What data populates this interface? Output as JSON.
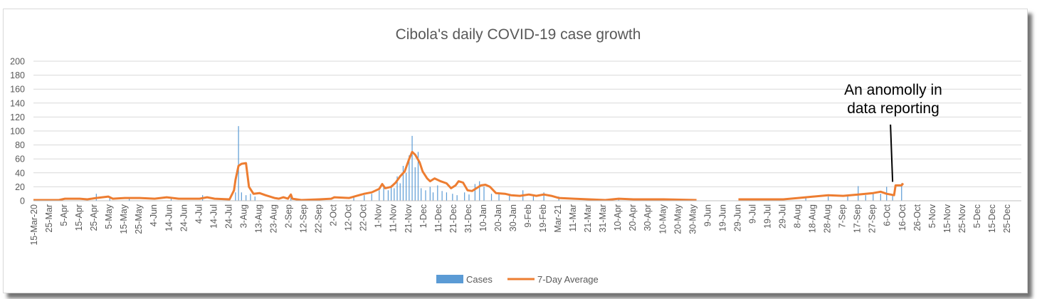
{
  "chart_data": {
    "type": "bar",
    "title": "Cibola's daily COVID-19 case growth",
    "xlabel": "",
    "ylabel": "",
    "ylim": [
      0,
      200
    ],
    "yticks": [
      0,
      20,
      40,
      60,
      80,
      100,
      120,
      140,
      160,
      180,
      200
    ],
    "grid": true,
    "legend_position": "bottom",
    "colors": {
      "cases": "#5b9bd5",
      "average": "#ed7d31"
    },
    "x_start": "2020-03-15",
    "x_days": 660,
    "x_tick_labels": [
      "15-Mar-20",
      "25-Mar",
      "5-Apr",
      "15-Apr",
      "25-Apr",
      "5-May",
      "15-May",
      "25-May",
      "4-Jun",
      "14-Jun",
      "24-Jun",
      "4-Jul",
      "14-Jul",
      "24-Jul",
      "3-Aug",
      "13-Aug",
      "23-Aug",
      "2-Sep",
      "12-Sep",
      "22-Sep",
      "2-Oct",
      "12-Oct",
      "22-Oct",
      "1-Nov",
      "11-Nov",
      "21-Nov",
      "1-Dec",
      "11-Dec",
      "21-Dec",
      "31-Dec",
      "10-Jan",
      "20-Jan",
      "30-Jan",
      "9-Feb",
      "19-Feb",
      "Mar-21",
      "11-Mar",
      "21-Mar",
      "31-Mar",
      "10-Apr",
      "20-Apr",
      "30-Apr",
      "10-May",
      "20-May",
      "30-May",
      "9-Jun",
      "19-Jun",
      "29-Jun",
      "9-Jul",
      "19-Jul",
      "29-Jul",
      "8-Aug",
      "18-Aug",
      "28-Aug",
      "7-Sep",
      "17-Sep",
      "27-Sep",
      "6-Oct",
      "16-Oct",
      "26-Oct",
      "5-Nov",
      "15-Nov",
      "25-Nov",
      "5-Dec",
      "15-Dec",
      "25-Dec"
    ],
    "series": [
      {
        "name": "Cases",
        "kind": "bar",
        "points": [
          {
            "date": "2020-04-26",
            "value": 10
          },
          {
            "date": "2020-05-05",
            "value": 5
          },
          {
            "date": "2020-05-18",
            "value": 4
          },
          {
            "date": "2020-06-15",
            "value": 4
          },
          {
            "date": "2020-07-06",
            "value": 8
          },
          {
            "date": "2020-07-28",
            "value": 12
          },
          {
            "date": "2020-07-30",
            "value": 107
          },
          {
            "date": "2020-08-01",
            "value": 12
          },
          {
            "date": "2020-08-04",
            "value": 8
          },
          {
            "date": "2020-08-07",
            "value": 10
          },
          {
            "date": "2020-08-10",
            "value": 6
          },
          {
            "date": "2020-09-03",
            "value": 5
          },
          {
            "date": "2020-10-15",
            "value": 5
          },
          {
            "date": "2020-10-22",
            "value": 8
          },
          {
            "date": "2020-10-27",
            "value": 10
          },
          {
            "date": "2020-11-01",
            "value": 15
          },
          {
            "date": "2020-11-04",
            "value": 20
          },
          {
            "date": "2020-11-07",
            "value": 15
          },
          {
            "date": "2020-11-09",
            "value": 22
          },
          {
            "date": "2020-11-11",
            "value": 18
          },
          {
            "date": "2020-11-13",
            "value": 35
          },
          {
            "date": "2020-11-15",
            "value": 25
          },
          {
            "date": "2020-11-17",
            "value": 50
          },
          {
            "date": "2020-11-19",
            "value": 40
          },
          {
            "date": "2020-11-21",
            "value": 65
          },
          {
            "date": "2020-11-23",
            "value": 93
          },
          {
            "date": "2020-11-25",
            "value": 48
          },
          {
            "date": "2020-11-27",
            "value": 70
          },
          {
            "date": "2020-11-29",
            "value": 18
          },
          {
            "date": "2020-12-02",
            "value": 15
          },
          {
            "date": "2020-12-05",
            "value": 20
          },
          {
            "date": "2020-12-07",
            "value": 12
          },
          {
            "date": "2020-12-10",
            "value": 22
          },
          {
            "date": "2020-12-13",
            "value": 14
          },
          {
            "date": "2020-12-16",
            "value": 12
          },
          {
            "date": "2020-12-20",
            "value": 10
          },
          {
            "date": "2020-12-23",
            "value": 8
          },
          {
            "date": "2020-12-28",
            "value": 12
          },
          {
            "date": "2020-12-31",
            "value": 9
          },
          {
            "date": "2021-01-04",
            "value": 24
          },
          {
            "date": "2021-01-07",
            "value": 28
          },
          {
            "date": "2021-01-10",
            "value": 20
          },
          {
            "date": "2021-01-15",
            "value": 10
          },
          {
            "date": "2021-01-20",
            "value": 12
          },
          {
            "date": "2021-01-27",
            "value": 8
          },
          {
            "date": "2021-02-05",
            "value": 15
          },
          {
            "date": "2021-02-12",
            "value": 7
          },
          {
            "date": "2021-02-19",
            "value": 12
          },
          {
            "date": "2021-03-01",
            "value": 6
          },
          {
            "date": "2021-04-10",
            "value": 4
          },
          {
            "date": "2021-05-10",
            "value": 3
          },
          {
            "date": "2021-08-13",
            "value": 5
          },
          {
            "date": "2021-08-28",
            "value": 6
          },
          {
            "date": "2021-09-10",
            "value": 8
          },
          {
            "date": "2021-09-17",
            "value": 21
          },
          {
            "date": "2021-09-22",
            "value": 8
          },
          {
            "date": "2021-09-27",
            "value": 12
          },
          {
            "date": "2021-10-02",
            "value": 10
          },
          {
            "date": "2021-10-06",
            "value": 20
          },
          {
            "date": "2021-10-10",
            "value": 8
          },
          {
            "date": "2021-10-16",
            "value": 25
          }
        ]
      },
      {
        "name": "7-Day Average",
        "kind": "line",
        "points": [
          {
            "date": "2020-03-15",
            "value": 1
          },
          {
            "date": "2020-04-01",
            "value": 1
          },
          {
            "date": "2020-04-05",
            "value": 3
          },
          {
            "date": "2020-04-15",
            "value": 3
          },
          {
            "date": "2020-04-20",
            "value": 2
          },
          {
            "date": "2020-04-26",
            "value": 4
          },
          {
            "date": "2020-05-04",
            "value": 6
          },
          {
            "date": "2020-05-07",
            "value": 3
          },
          {
            "date": "2020-05-15",
            "value": 4
          },
          {
            "date": "2020-05-25",
            "value": 4
          },
          {
            "date": "2020-06-04",
            "value": 3
          },
          {
            "date": "2020-06-12",
            "value": 5
          },
          {
            "date": "2020-06-20",
            "value": 3
          },
          {
            "date": "2020-07-04",
            "value": 3
          },
          {
            "date": "2020-07-09",
            "value": 5
          },
          {
            "date": "2020-07-14",
            "value": 3
          },
          {
            "date": "2020-07-24",
            "value": 2
          },
          {
            "date": "2020-07-27",
            "value": 15
          },
          {
            "date": "2020-07-28",
            "value": 30
          },
          {
            "date": "2020-07-30",
            "value": 50
          },
          {
            "date": "2020-08-01",
            "value": 53
          },
          {
            "date": "2020-08-04",
            "value": 54
          },
          {
            "date": "2020-08-06",
            "value": 20
          },
          {
            "date": "2020-08-09",
            "value": 10
          },
          {
            "date": "2020-08-13",
            "value": 11
          },
          {
            "date": "2020-08-17",
            "value": 8
          },
          {
            "date": "2020-08-23",
            "value": 4
          },
          {
            "date": "2020-08-26",
            "value": 3
          },
          {
            "date": "2020-08-29",
            "value": 5
          },
          {
            "date": "2020-09-01",
            "value": 3
          },
          {
            "date": "2020-09-03",
            "value": 9
          },
          {
            "date": "2020-09-04",
            "value": 3
          },
          {
            "date": "2020-09-10",
            "value": 1
          },
          {
            "date": "2020-09-22",
            "value": 2
          },
          {
            "date": "2020-09-30",
            "value": 3
          },
          {
            "date": "2020-10-02",
            "value": 5
          },
          {
            "date": "2020-10-12",
            "value": 4
          },
          {
            "date": "2020-10-17",
            "value": 7
          },
          {
            "date": "2020-10-22",
            "value": 10
          },
          {
            "date": "2020-10-27",
            "value": 12
          },
          {
            "date": "2020-11-01",
            "value": 17
          },
          {
            "date": "2020-11-03",
            "value": 24
          },
          {
            "date": "2020-11-05",
            "value": 18
          },
          {
            "date": "2020-11-09",
            "value": 20
          },
          {
            "date": "2020-11-12",
            "value": 26
          },
          {
            "date": "2020-11-15",
            "value": 35
          },
          {
            "date": "2020-11-18",
            "value": 42
          },
          {
            "date": "2020-11-21",
            "value": 60
          },
          {
            "date": "2020-11-23",
            "value": 70
          },
          {
            "date": "2020-11-25",
            "value": 66
          },
          {
            "date": "2020-11-28",
            "value": 55
          },
          {
            "date": "2020-11-30",
            "value": 42
          },
          {
            "date": "2020-12-03",
            "value": 32
          },
          {
            "date": "2020-12-05",
            "value": 28
          },
          {
            "date": "2020-12-08",
            "value": 32
          },
          {
            "date": "2020-12-12",
            "value": 28
          },
          {
            "date": "2020-12-16",
            "value": 25
          },
          {
            "date": "2020-12-19",
            "value": 18
          },
          {
            "date": "2020-12-22",
            "value": 22
          },
          {
            "date": "2020-12-24",
            "value": 28
          },
          {
            "date": "2020-12-27",
            "value": 26
          },
          {
            "date": "2020-12-30",
            "value": 15
          },
          {
            "date": "2021-01-02",
            "value": 14
          },
          {
            "date": "2021-01-05",
            "value": 18
          },
          {
            "date": "2021-01-08",
            "value": 22
          },
          {
            "date": "2021-01-11",
            "value": 23
          },
          {
            "date": "2021-01-14",
            "value": 20
          },
          {
            "date": "2021-01-18",
            "value": 11
          },
          {
            "date": "2021-01-24",
            "value": 10
          },
          {
            "date": "2021-01-28",
            "value": 8
          },
          {
            "date": "2021-02-03",
            "value": 7
          },
          {
            "date": "2021-02-09",
            "value": 9
          },
          {
            "date": "2021-02-14",
            "value": 7
          },
          {
            "date": "2021-02-19",
            "value": 9
          },
          {
            "date": "2021-02-24",
            "value": 7
          },
          {
            "date": "2021-03-01",
            "value": 4
          },
          {
            "date": "2021-03-11",
            "value": 3
          },
          {
            "date": "2021-03-21",
            "value": 2
          },
          {
            "date": "2021-04-01",
            "value": 1
          },
          {
            "date": "2021-04-10",
            "value": 3
          },
          {
            "date": "2021-04-20",
            "value": 2
          },
          {
            "date": "2021-05-10",
            "value": 2
          },
          {
            "date": "2021-06-01",
            "value": 1
          },
          {
            "date": "2021-06-29",
            "value": 2
          },
          {
            "date": "2021-07-29",
            "value": 2
          },
          {
            "date": "2021-08-08",
            "value": 4
          },
          {
            "date": "2021-08-18",
            "value": 6
          },
          {
            "date": "2021-08-28",
            "value": 8
          },
          {
            "date": "2021-09-07",
            "value": 7
          },
          {
            "date": "2021-09-17",
            "value": 9
          },
          {
            "date": "2021-09-27",
            "value": 11
          },
          {
            "date": "2021-10-02",
            "value": 13
          },
          {
            "date": "2021-10-06",
            "value": 10
          },
          {
            "date": "2021-10-11",
            "value": 8
          },
          {
            "date": "2021-10-12",
            "value": 22
          },
          {
            "date": "2021-10-16",
            "value": 22
          },
          {
            "date": "2021-10-17",
            "value": 25
          }
        ]
      }
    ],
    "annotation": {
      "lines": [
        "An anomolly in",
        "data reporting"
      ],
      "date": "2021-10-10",
      "value": 22
    }
  }
}
